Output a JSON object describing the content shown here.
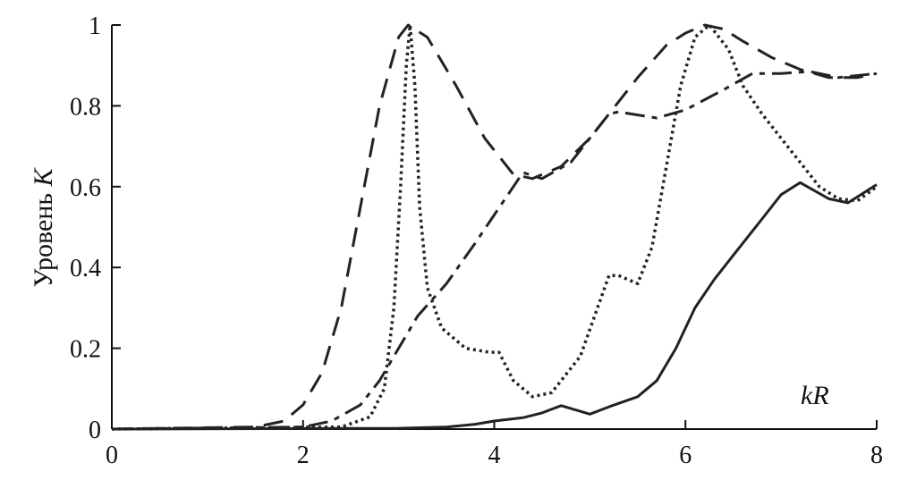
{
  "chart_data": {
    "type": "line",
    "title": "",
    "xlabel": "kR",
    "ylabel": "Уровень",
    "ylabel_italic": "K",
    "xlim": [
      0,
      8
    ],
    "ylim": [
      0,
      1
    ],
    "xticks": [
      "0",
      "2",
      "4",
      "6",
      "8"
    ],
    "yticks": [
      "0",
      "0.2",
      "0.4",
      "0.6",
      "0.8",
      "1"
    ],
    "grid": false,
    "legend": "none",
    "series": [
      {
        "style": "dashed",
        "color": "#222222",
        "x": [
          0,
          1.5,
          1.8,
          2.0,
          2.2,
          2.4,
          2.6,
          2.8,
          3.0,
          3.1,
          3.3,
          3.6,
          3.9,
          4.2,
          4.4,
          4.7,
          5.0,
          5.2,
          5.5,
          5.8,
          6.0,
          6.2,
          6.4,
          6.6,
          6.9,
          7.2,
          7.5,
          7.8,
          8.0
        ],
        "y": [
          0,
          0.005,
          0.02,
          0.06,
          0.14,
          0.3,
          0.55,
          0.8,
          0.97,
          1.0,
          0.97,
          0.85,
          0.72,
          0.63,
          0.62,
          0.65,
          0.72,
          0.78,
          0.87,
          0.95,
          0.98,
          1.0,
          0.99,
          0.96,
          0.92,
          0.89,
          0.87,
          0.87,
          0.88
        ]
      },
      {
        "style": "dash-dot",
        "color": "#222222",
        "x": [
          0,
          2.0,
          2.3,
          2.6,
          2.8,
          3.0,
          3.2,
          3.5,
          3.8,
          4.0,
          4.2,
          4.3,
          4.5,
          4.8,
          5.0,
          5.2,
          5.3,
          5.7,
          6.0,
          6.4,
          6.7,
          7.0,
          7.3,
          7.6,
          8.0
        ],
        "y": [
          0,
          0.005,
          0.02,
          0.06,
          0.12,
          0.2,
          0.28,
          0.36,
          0.46,
          0.53,
          0.6,
          0.635,
          0.62,
          0.66,
          0.72,
          0.78,
          0.785,
          0.77,
          0.79,
          0.84,
          0.88,
          0.88,
          0.885,
          0.87,
          0.88
        ]
      },
      {
        "style": "dotted",
        "color": "#222222",
        "x": [
          0,
          2.4,
          2.7,
          2.85,
          2.95,
          3.02,
          3.08,
          3.12,
          3.17,
          3.22,
          3.3,
          3.45,
          3.7,
          3.95,
          4.05,
          4.2,
          4.4,
          4.6,
          4.9,
          5.2,
          5.3,
          5.5,
          5.65,
          5.8,
          5.95,
          6.1,
          6.25,
          6.45,
          6.6,
          6.8,
          7.0,
          7.2,
          7.4,
          7.6,
          7.8,
          8.0
        ],
        "y": [
          0,
          0.005,
          0.03,
          0.1,
          0.3,
          0.6,
          0.9,
          1.0,
          0.85,
          0.55,
          0.35,
          0.25,
          0.2,
          0.19,
          0.19,
          0.12,
          0.08,
          0.09,
          0.18,
          0.38,
          0.38,
          0.36,
          0.45,
          0.65,
          0.85,
          0.97,
          1.0,
          0.94,
          0.85,
          0.78,
          0.72,
          0.66,
          0.6,
          0.57,
          0.565,
          0.6
        ]
      },
      {
        "style": "solid",
        "color": "#222222",
        "x": [
          0,
          3.0,
          3.5,
          3.8,
          4.0,
          4.3,
          4.5,
          4.7,
          5.0,
          5.2,
          5.5,
          5.7,
          5.9,
          6.1,
          6.3,
          6.5,
          6.8,
          7.0,
          7.2,
          7.5,
          7.7,
          8.0
        ],
        "y": [
          0,
          0.002,
          0.005,
          0.012,
          0.02,
          0.028,
          0.04,
          0.058,
          0.037,
          0.055,
          0.08,
          0.12,
          0.2,
          0.3,
          0.37,
          0.43,
          0.52,
          0.58,
          0.61,
          0.57,
          0.56,
          0.605
        ]
      }
    ]
  }
}
